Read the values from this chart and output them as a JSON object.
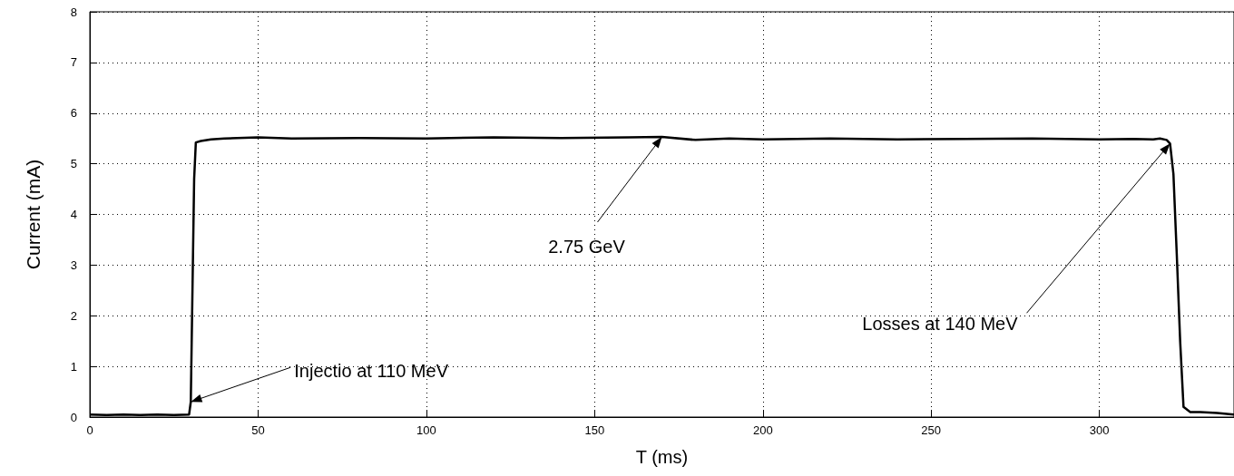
{
  "chart_data": {
    "type": "line",
    "xlabel": "T (ms)",
    "ylabel": "Current (mA)",
    "x": [
      0,
      5,
      10,
      15,
      20,
      25,
      29.5,
      30,
      30.5,
      31,
      31.5,
      33,
      36,
      40,
      50,
      60,
      80,
      100,
      120,
      140,
      160,
      170,
      180,
      190,
      200,
      220,
      240,
      260,
      280,
      300,
      310,
      316,
      318,
      320,
      321,
      322,
      323,
      324,
      325,
      327,
      330,
      335,
      340
    ],
    "series": [
      {
        "color": "#000000",
        "values": [
          0.05,
          0.04,
          0.05,
          0.04,
          0.05,
          0.04,
          0.05,
          0.3,
          2.5,
          4.7,
          5.42,
          5.45,
          5.48,
          5.5,
          5.52,
          5.5,
          5.51,
          5.5,
          5.52,
          5.51,
          5.52,
          5.53,
          5.47,
          5.5,
          5.48,
          5.5,
          5.48,
          5.49,
          5.5,
          5.48,
          5.49,
          5.48,
          5.5,
          5.47,
          5.4,
          4.8,
          3.2,
          1.5,
          0.2,
          0.1,
          0.1,
          0.08,
          0.05
        ]
      }
    ],
    "xlim": [
      0,
      340
    ],
    "xticks": [
      0,
      50,
      100,
      150,
      200,
      250,
      300
    ],
    "ylim": [
      0,
      8
    ],
    "yticks": [
      0,
      1,
      2,
      3,
      4,
      5,
      6,
      7,
      8
    ],
    "grid": true,
    "marker": "none",
    "line_style": "solid",
    "annotations": [
      {
        "text": "Injectio at 110 MeV",
        "x": 30,
        "y": 0.3
      },
      {
        "text": "2.75 GeV",
        "x": 170,
        "y": 5.53
      },
      {
        "text": "Losses at 140 MeV",
        "x": 321,
        "y": 5.4
      }
    ]
  }
}
